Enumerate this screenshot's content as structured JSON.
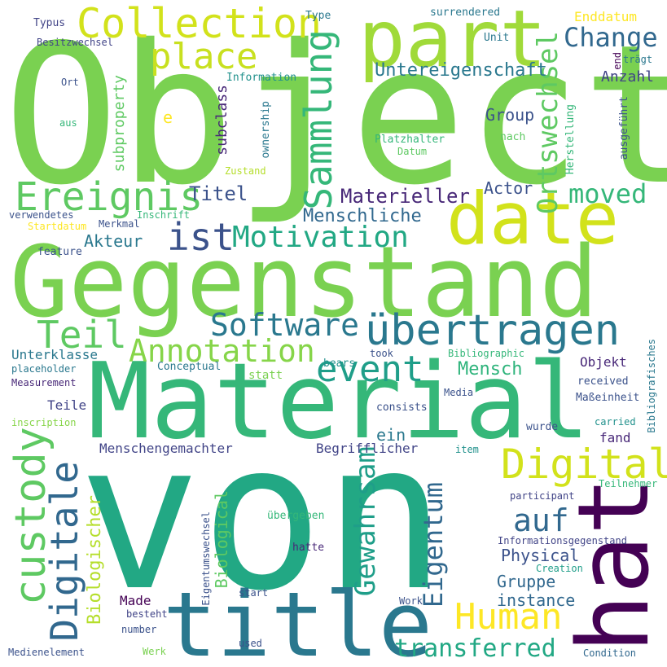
{
  "colors": {
    "background": "#ffffff",
    "palette": {
      "green_light": "#7ad151",
      "green": "#5ec962",
      "green_teal": "#35b779",
      "teal": "#22a884",
      "teal_dark": "#1f9e89",
      "cyan": "#21918c",
      "blue_teal": "#2a788e",
      "blue": "#31688e",
      "blue_dark": "#3b528b",
      "indigo": "#414487",
      "purple": "#482878",
      "purple_dark": "#440154",
      "yellow": "#fde725",
      "yellow_green": "#b5de2b",
      "lime": "#d2e21b",
      "light_green": "#a0da39"
    }
  },
  "words": [
    {
      "text": "Object",
      "color": "#7ad151"
    },
    {
      "text": "Gegenstand",
      "color": "#7ad151"
    },
    {
      "text": "Material",
      "color": "#35b779"
    },
    {
      "text": "von",
      "color": "#22a884"
    },
    {
      "text": "hat",
      "color": "#440154"
    },
    {
      "text": "title",
      "color": "#2a788e"
    },
    {
      "text": "part",
      "color": "#a0da39"
    },
    {
      "text": "date",
      "color": "#d2e21b"
    },
    {
      "text": "Collection",
      "color": "#d2e21b"
    },
    {
      "text": "place",
      "color": "#c8e020"
    },
    {
      "text": "Ereignis",
      "color": "#5ec962"
    },
    {
      "text": "ist",
      "color": "#3b528b"
    },
    {
      "text": "Motivation",
      "color": "#22a884"
    },
    {
      "text": "übertragen",
      "color": "#2a788e"
    },
    {
      "text": "Software",
      "color": "#2a788e"
    },
    {
      "text": "Teil",
      "color": "#5ec962"
    },
    {
      "text": "Annotation",
      "color": "#86d549"
    },
    {
      "text": "event",
      "color": "#1f9e89"
    },
    {
      "text": "custody",
      "color": "#5ec962"
    },
    {
      "text": "Digitale",
      "color": "#31688e"
    },
    {
      "text": "Digital",
      "color": "#d2e21b"
    },
    {
      "text": "Sammlung",
      "color": "#35b779"
    },
    {
      "text": "Ortswechsel",
      "color": "#5ec962"
    },
    {
      "text": "Change",
      "color": "#31688e"
    },
    {
      "text": "Untereigenschaft",
      "color": "#2a788e"
    },
    {
      "text": "moved",
      "color": "#35b779"
    },
    {
      "text": "Materieller",
      "color": "#482878"
    },
    {
      "text": "Menschliche",
      "color": "#31688e"
    },
    {
      "text": "Titel",
      "color": "#3b528b"
    },
    {
      "text": "Akteur",
      "color": "#2a788e"
    },
    {
      "text": "Actor",
      "color": "#3b528b"
    },
    {
      "text": "Group",
      "color": "#3b528b"
    },
    {
      "text": "Anzahl",
      "color": "#414487"
    },
    {
      "text": "Enddatum",
      "color": "#fde725"
    },
    {
      "text": "Gewahrsam",
      "color": "#1f9e89"
    },
    {
      "text": "Eigentum",
      "color": "#31688e"
    },
    {
      "text": "auf",
      "color": "#31688e"
    },
    {
      "text": "Human",
      "color": "#fde725"
    },
    {
      "text": "Mensch",
      "color": "#2fb47c"
    },
    {
      "text": "Objekt",
      "color": "#482878"
    },
    {
      "text": "transferred",
      "color": "#22a884"
    },
    {
      "text": "Physical",
      "color": "#3b528b"
    },
    {
      "text": "Gruppe",
      "color": "#31688e"
    },
    {
      "text": "instance",
      "color": "#31688e"
    },
    {
      "text": "Biologischer",
      "color": "#b5de2b"
    },
    {
      "text": "Biological",
      "color": "#5ec962"
    },
    {
      "text": "ein",
      "color": "#2a788e"
    },
    {
      "text": "Menschengemachter",
      "color": "#414487"
    },
    {
      "text": "Begrifflicher",
      "color": "#414487"
    },
    {
      "text": "Unterklasse",
      "color": "#2a788e"
    },
    {
      "text": "Teile",
      "color": "#414487"
    },
    {
      "text": "Made",
      "color": "#440154"
    },
    {
      "text": "subclass",
      "color": "#482878"
    },
    {
      "text": "subproperty",
      "color": "#5ec962"
    },
    {
      "text": "e",
      "color": "#fde725"
    },
    {
      "text": "Typus",
      "color": "#414487"
    },
    {
      "text": "Besitzwechsel",
      "color": "#414487"
    },
    {
      "text": "Type",
      "color": "#2a788e"
    },
    {
      "text": "surrendered",
      "color": "#2a788e"
    },
    {
      "text": "Unit",
      "color": "#2a788e"
    },
    {
      "text": "Ort",
      "color": "#3b528b"
    },
    {
      "text": "aus",
      "color": "#35b779"
    },
    {
      "text": "Information",
      "color": "#21918c"
    },
    {
      "text": "ownership",
      "color": "#2a788e"
    },
    {
      "text": "Platzhalter",
      "color": "#35b779"
    },
    {
      "text": "Datum",
      "color": "#5ec962"
    },
    {
      "text": "nach",
      "color": "#5ec962"
    },
    {
      "text": "Herstellung",
      "color": "#35b779"
    },
    {
      "text": "ausgeführt",
      "color": "#3b528b"
    },
    {
      "text": "end",
      "color": "#440154"
    },
    {
      "text": "trägt",
      "color": "#2a788e"
    },
    {
      "text": "Zustand",
      "color": "#b5de2b"
    },
    {
      "text": "verwendetes",
      "color": "#3b528b"
    },
    {
      "text": "Inschrift",
      "color": "#35b779"
    },
    {
      "text": "Merkmal",
      "color": "#3b528b"
    },
    {
      "text": "Startdatum",
      "color": "#fde725"
    },
    {
      "text": "feature",
      "color": "#3b528b"
    },
    {
      "text": "placeholder",
      "color": "#2a788e"
    },
    {
      "text": "Measurement",
      "color": "#482878"
    },
    {
      "text": "inscription",
      "color": "#86d549"
    },
    {
      "text": "Conceptual",
      "color": "#2a788e"
    },
    {
      "text": "statt",
      "color": "#7ad151"
    },
    {
      "text": "bears",
      "color": "#21918c"
    },
    {
      "text": "took",
      "color": "#3b528b"
    },
    {
      "text": "Bibliographic",
      "color": "#35b779"
    },
    {
      "text": "Bibliografisches",
      "color": "#2a788e"
    },
    {
      "text": "received",
      "color": "#3b528b"
    },
    {
      "text": "Maßeinheit",
      "color": "#3b528b"
    },
    {
      "text": "consists",
      "color": "#3b528b"
    },
    {
      "text": "Media",
      "color": "#3b528b"
    },
    {
      "text": "carried",
      "color": "#21918c"
    },
    {
      "text": "wurde",
      "color": "#3b528b"
    },
    {
      "text": "fand",
      "color": "#482878"
    },
    {
      "text": "item",
      "color": "#21918c"
    },
    {
      "text": "participant",
      "color": "#414487"
    },
    {
      "text": "Teilnehmer",
      "color": "#35b779"
    },
    {
      "text": "Eigentumswechsel",
      "color": "#3b528b"
    },
    {
      "text": "übergeben",
      "color": "#35b779"
    },
    {
      "text": "hatte",
      "color": "#482878"
    },
    {
      "text": "Informationsgegenstand",
      "color": "#414487"
    },
    {
      "text": "Creation",
      "color": "#1f9e89"
    },
    {
      "text": "start",
      "color": "#3b528b"
    },
    {
      "text": "besteht",
      "color": "#414487"
    },
    {
      "text": "Work",
      "color": "#3b528b"
    },
    {
      "text": "number",
      "color": "#3b528b"
    },
    {
      "text": "Medienelement",
      "color": "#3b528b"
    },
    {
      "text": "Werk",
      "color": "#7ad151"
    },
    {
      "text": "used",
      "color": "#3b528b"
    },
    {
      "text": "Condition",
      "color": "#31688e"
    }
  ]
}
